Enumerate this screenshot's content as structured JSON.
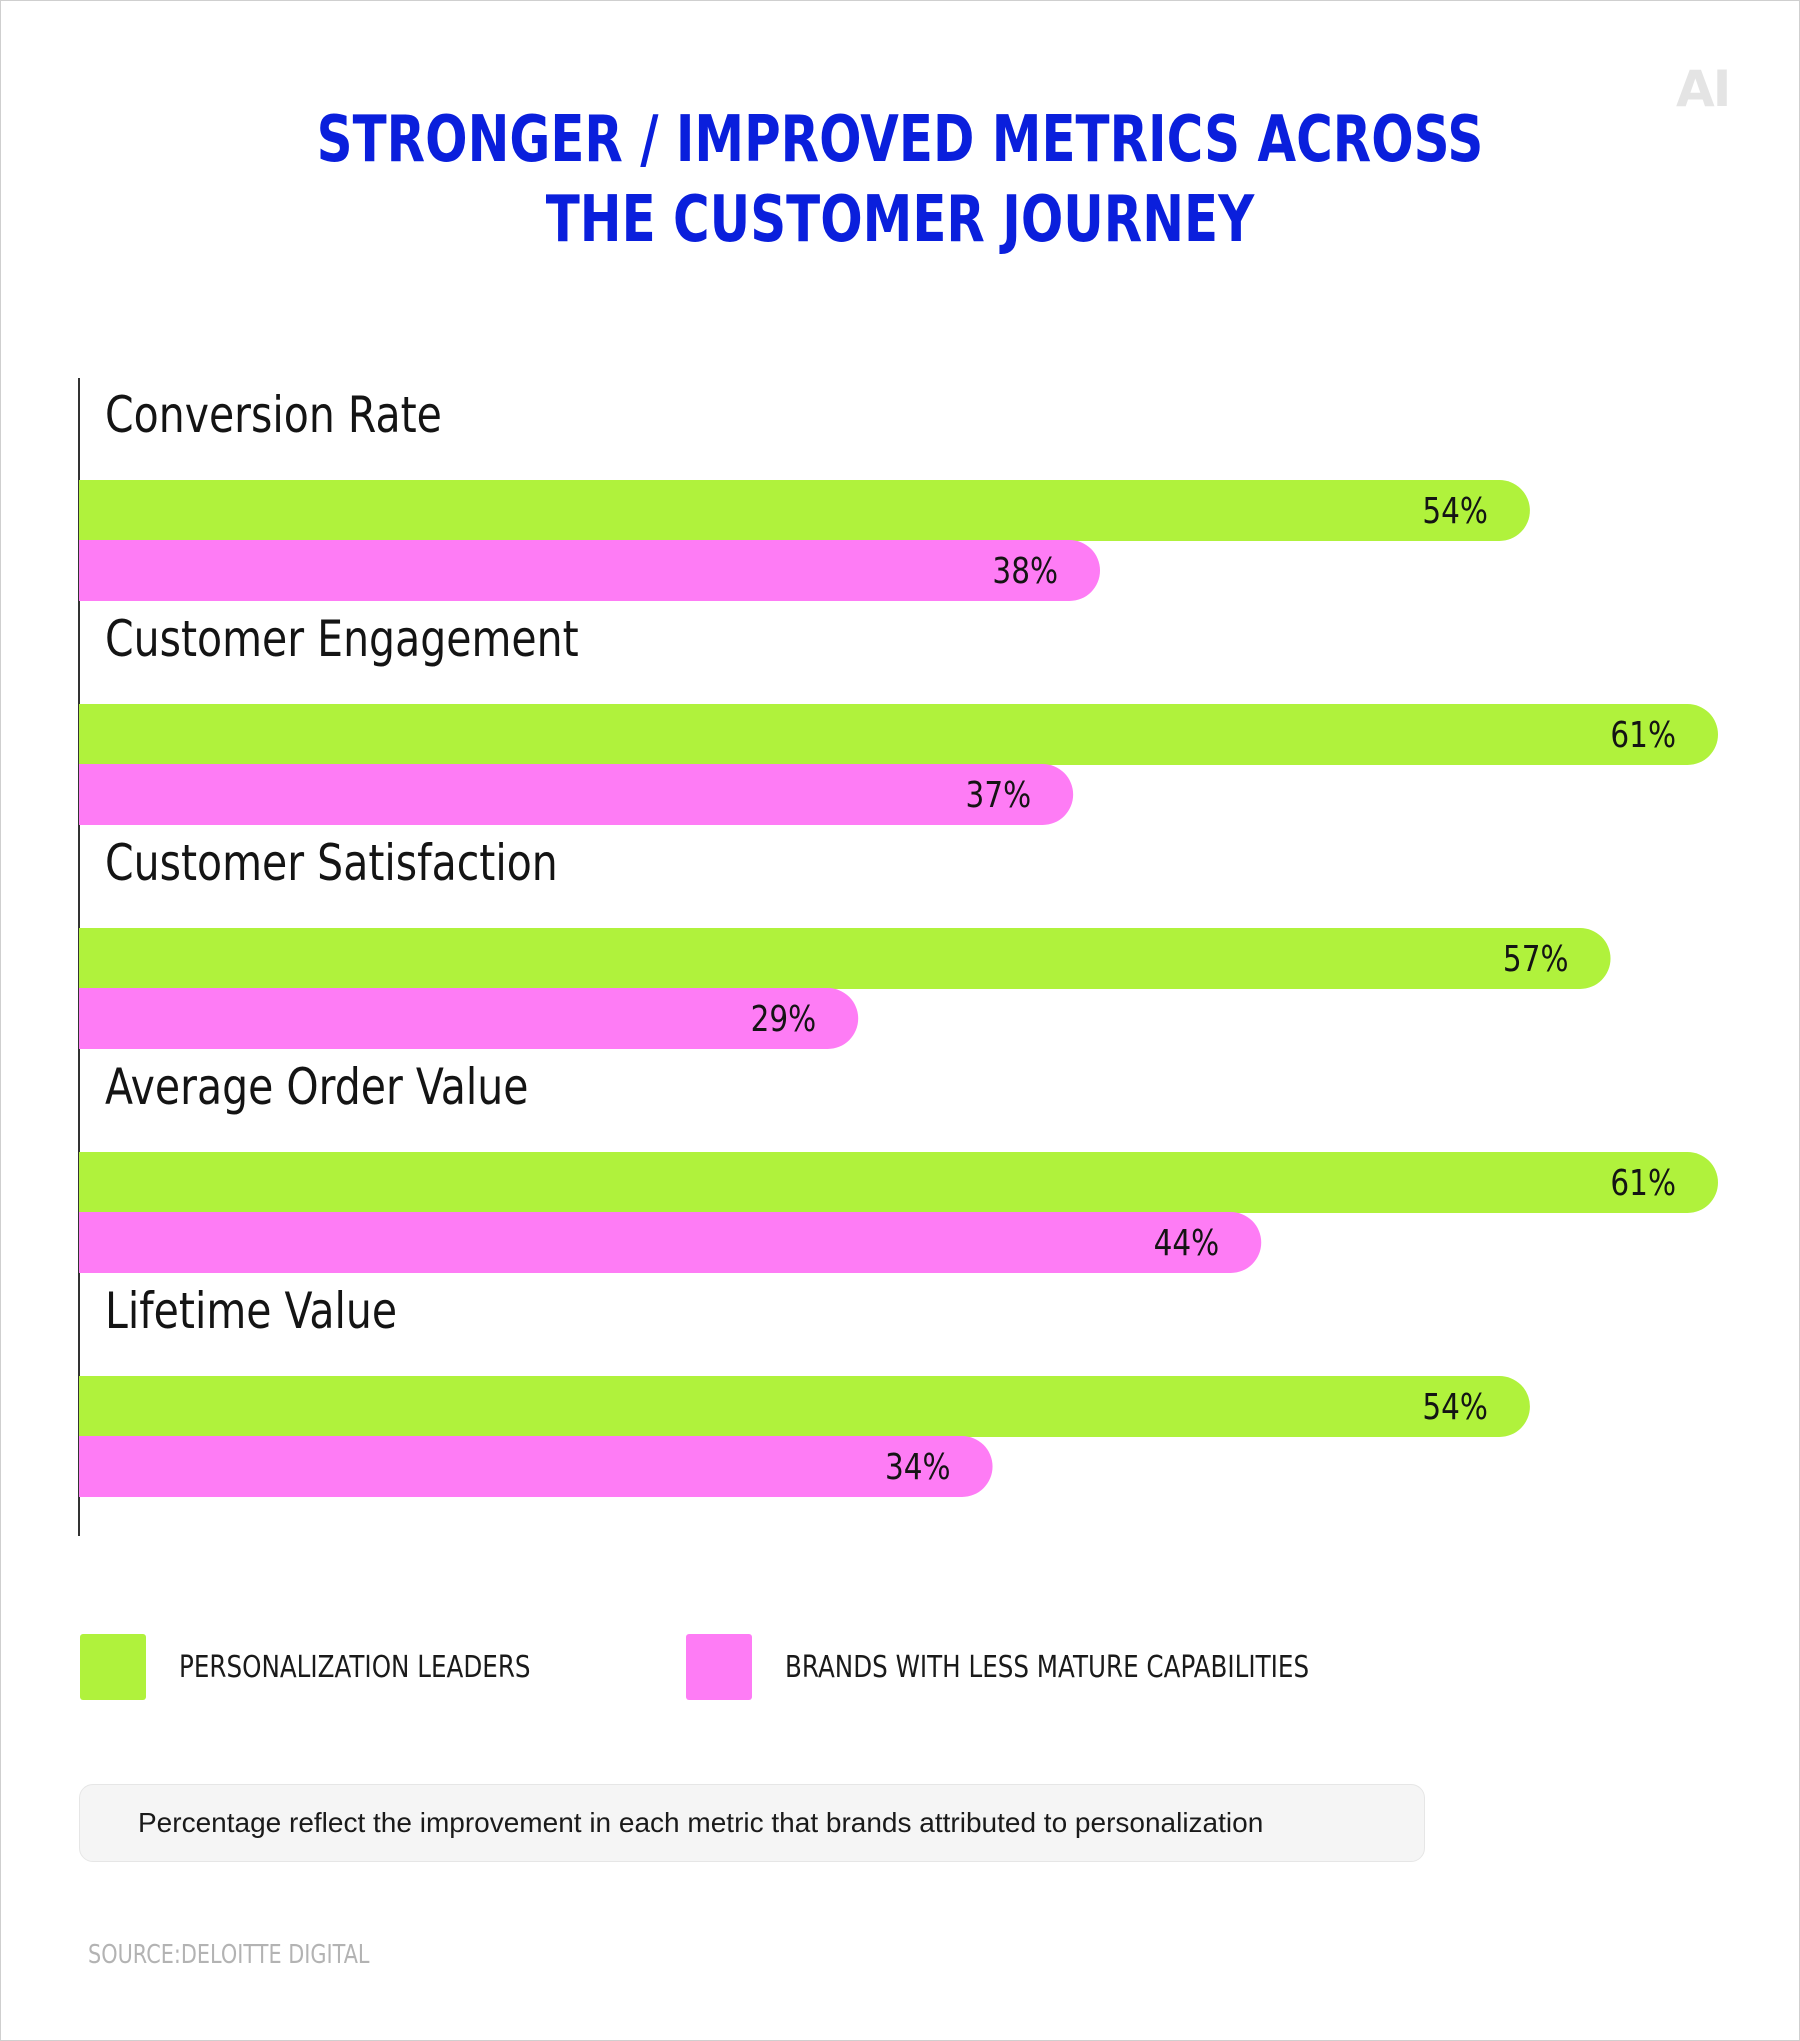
{
  "brand": {
    "logo_text": "AI"
  },
  "colors": {
    "title": "#0a1fdc",
    "leaders": "#b0f23c",
    "less_mature": "#fe7cf5",
    "axis": "#333333",
    "text": "#141414"
  },
  "chart_data": {
    "type": "bar",
    "orientation": "horizontal",
    "title_lines": [
      "STRONGER / IMPROVED METRICS ACROSS",
      "THE CUSTOMER JOURNEY"
    ],
    "categories": [
      "Conversion Rate",
      "Customer Engagement",
      "Customer Satisfaction",
      "Average Order Value",
      "Lifetime Value"
    ],
    "series": [
      {
        "name": "PERSONALIZATION LEADERS",
        "values": [
          54,
          61,
          57,
          61,
          54
        ]
      },
      {
        "name": "BRANDS WITH LESS MATURE CAPABILITIES",
        "values": [
          38,
          37,
          29,
          44,
          34
        ]
      }
    ],
    "value_format": "{v}%",
    "xlim": [
      0,
      61
    ],
    "grid": false,
    "legend_position": "bottom"
  },
  "legend": [
    {
      "label": "PERSONALIZATION LEADERS",
      "color": "#b0f23c"
    },
    {
      "label": "BRANDS WITH LESS MATURE CAPABILITIES",
      "color": "#fe7cf5"
    }
  ],
  "note": "Percentage reflect the improvement in each metric that brands attributed to personalization",
  "source": "SOURCE:DELOITTE DIGITAL"
}
